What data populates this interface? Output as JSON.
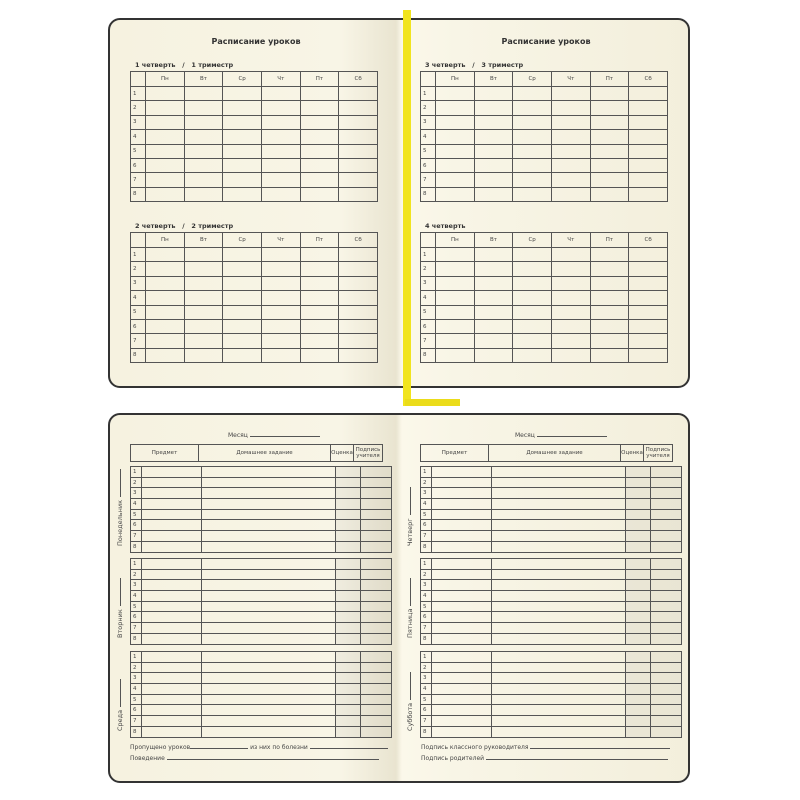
{
  "schedule": {
    "left_title": "Расписание уроков",
    "right_title": "Расписание уроков",
    "days": [
      "Пн",
      "Вт",
      "Ср",
      "Чт",
      "Пт",
      "Сб"
    ],
    "lessons": [
      "1",
      "2",
      "3",
      "4",
      "5",
      "6",
      "7",
      "8"
    ],
    "quarters": [
      {
        "label": "1 четверть   /   1 триместр"
      },
      {
        "label": "2 четверть   /   2 триместр"
      },
      {
        "label": "3 четверть   /   3 триместр"
      },
      {
        "label": "4 четверть"
      }
    ]
  },
  "weekly": {
    "month_label": "Месяц",
    "headers": {
      "subject": "Предмет",
      "homework": "Домашнее задание",
      "grade": "Оценка",
      "signature": "Подпись учителя"
    },
    "days": [
      "Понедельник",
      "Вторник",
      "Среда",
      "Четверг",
      "Пятница",
      "Суббота"
    ],
    "lessons": [
      "1",
      "2",
      "3",
      "4",
      "5",
      "6",
      "7",
      "8"
    ],
    "footer_left": {
      "missed": "Пропущено уроков",
      "sick": "из них по болезни",
      "behavior": "Поведение"
    },
    "footer_right": {
      "teacher_sign": "Подпись классного руководителя",
      "parent_sign": "Подпись родителей"
    }
  },
  "colors": {
    "ribbon": "#f1e41e",
    "paper": "#f8f5e6",
    "cover": "#333333"
  }
}
